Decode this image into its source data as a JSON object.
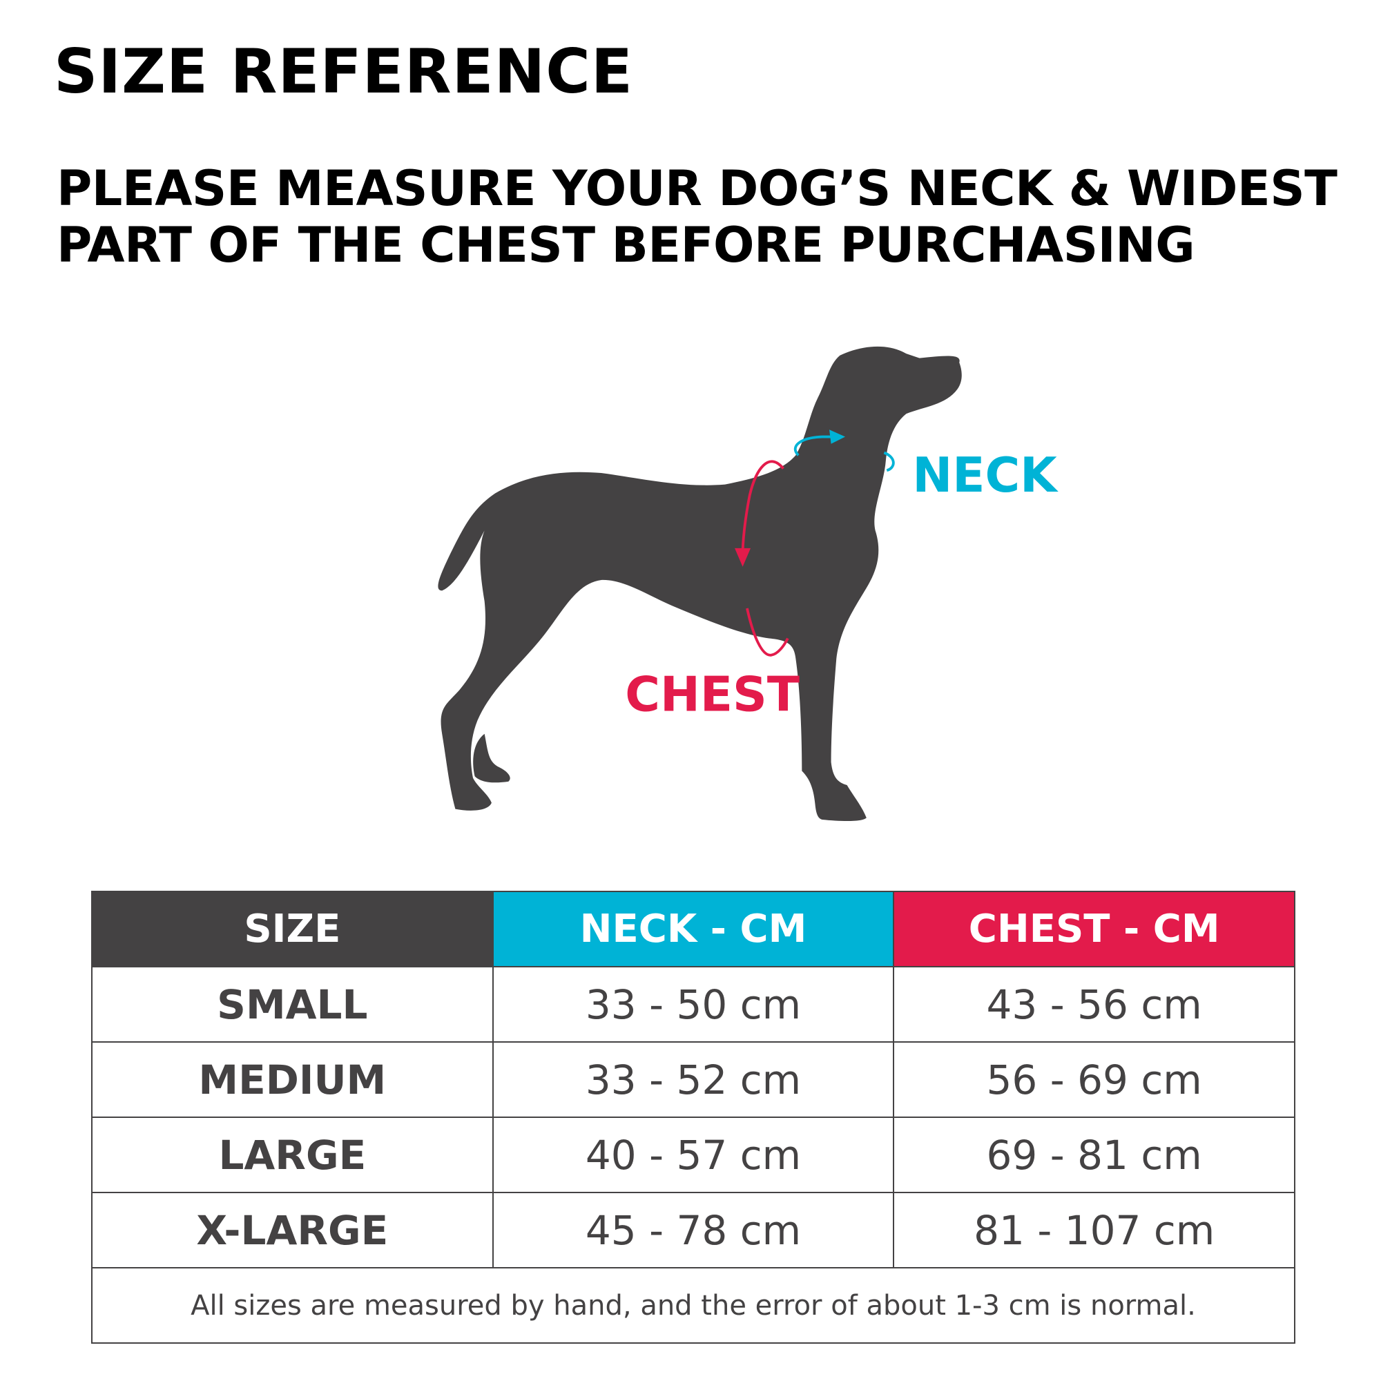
{
  "title": "SIZE REFERENCE",
  "subtitle": "PLEASE MEASURE YOUR DOG’S NECK & WIDEST PART OF THE CHEST BEFORE PURCHASING",
  "diagram": {
    "neck_label": "NECK",
    "chest_label": "CHEST",
    "neck_color": "#00b3d6",
    "chest_color": "#e31b4b",
    "dog_color": "#444243"
  },
  "table": {
    "headers": [
      "SIZE",
      "NECK - CM",
      "CHEST - CM"
    ],
    "rows": [
      {
        "size": "SMALL",
        "neck": "33 - 50 cm",
        "chest": "43 - 56 cm"
      },
      {
        "size": "MEDIUM",
        "neck": "33 - 52 cm",
        "chest": "56 - 69 cm"
      },
      {
        "size": "LARGE",
        "neck": "40 - 57 cm",
        "chest": "69 - 81 cm"
      },
      {
        "size": "X-LARGE",
        "neck": "45 - 78 cm",
        "chest": "81 - 107 cm"
      }
    ],
    "footnote": "All sizes are measured by hand, and the error of about 1-3 cm is normal."
  }
}
